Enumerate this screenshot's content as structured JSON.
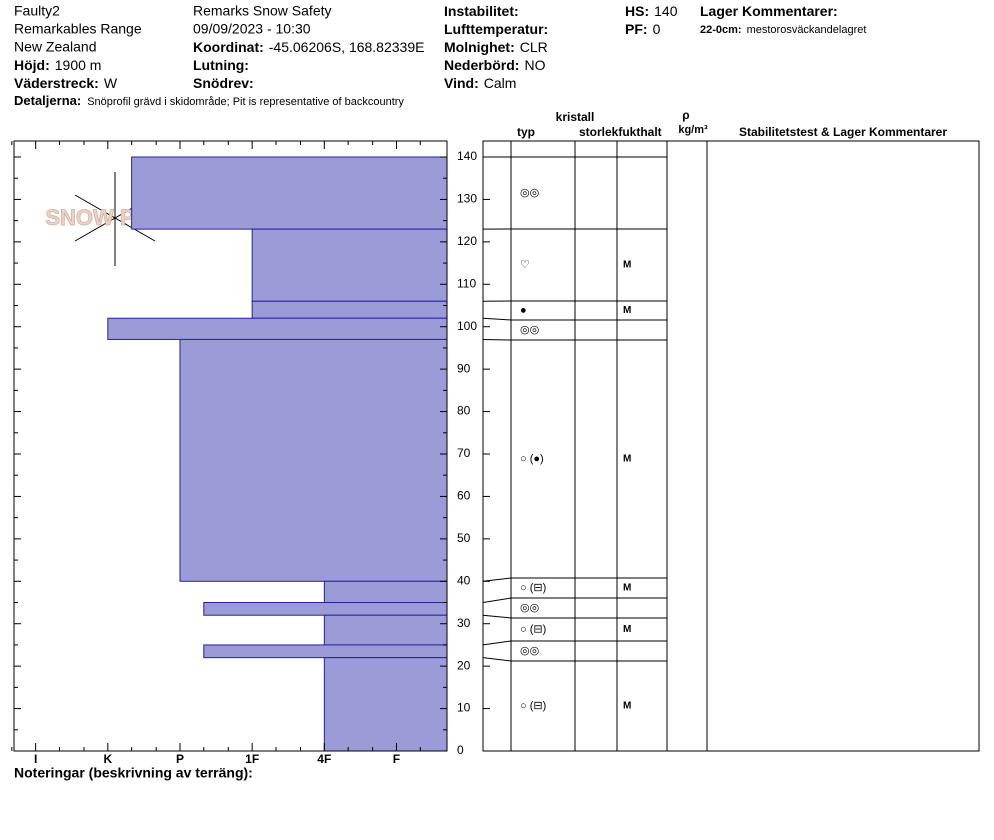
{
  "header": {
    "columns": [
      [
        "Faulty2",
        "Remarkables Range",
        "New Zealand",
        {
          "label": "Höjd:",
          "value": "1900 m"
        },
        {
          "label": "Väderstreck:",
          "value": "W"
        }
      ],
      [
        "Remarks Snow Safety",
        "09/09/2023 - 10:30",
        {
          "label": "Koordinat:",
          "value": "-45.06206S, 168.82339E"
        },
        {
          "label": "Lutning:"
        },
        {
          "label": "Snödrev:"
        }
      ],
      [
        {
          "label": "Instabilitet:"
        },
        {
          "label": "Lufttemperatur:"
        },
        {
          "label": "Molnighet:",
          "value": "CLR"
        },
        {
          "label": "Nederbörd:",
          "value": "NO"
        },
        {
          "label": "Vind:",
          "value": "Calm"
        }
      ],
      [
        {
          "label": "HS:",
          "value": 140
        },
        {
          "label": "PF:",
          "value": 0
        }
      ],
      [
        {
          "label": "Lager Kommentarer:"
        },
        {
          "label": "22-0cm:",
          "value": "mestorosväckandelagret"
        }
      ]
    ],
    "details": {
      "label": "Detaljerna:",
      "value": "Snöprofil grävd i skidområde;  Pit is representative of backcountry"
    }
  },
  "watermark": "SNOW PILOT",
  "chart_data": {
    "type": "snow-profile",
    "ylim": [
      0,
      140
    ],
    "yticks": [
      0,
      10,
      20,
      30,
      40,
      50,
      60,
      70,
      80,
      90,
      100,
      110,
      120,
      130,
      140
    ],
    "xlim": [
      6.3,
      0.3
    ],
    "xticks": [
      {
        "value": 6,
        "label": "I"
      },
      {
        "value": 5,
        "label": "K"
      },
      {
        "value": 4,
        "label": "P"
      },
      {
        "value": 3,
        "label": "1F"
      },
      {
        "value": 2,
        "label": "4F"
      },
      {
        "value": 1,
        "label": "F"
      }
    ],
    "color": "#9b9bd7",
    "edge_color": "#2323a0",
    "table_headers": {
      "crystal": "kristall",
      "type": "typ",
      "size": "storlek",
      "moisture": "fukthalt",
      "density": "ρ",
      "density_unit": "kg/m³",
      "comments": "Stabilitetstest & Lager Kommentarer"
    },
    "layers": [
      {
        "top": 140,
        "bottom": 123,
        "hardness": 4.67,
        "grain_type": "◎◎"
      },
      {
        "top": 123,
        "bottom": 106,
        "hardness": 3,
        "grain_type": "♡",
        "moisture": "M"
      },
      {
        "top": 106,
        "bottom": 102,
        "hardness": 3,
        "grain_type": "●",
        "moisture": "M"
      },
      {
        "top": 102,
        "bottom": 97,
        "hardness": 5,
        "grain_type": "◎◎"
      },
      {
        "top": 97,
        "bottom": 40,
        "hardness": 4,
        "grain_type": "○ (●)",
        "moisture": "M"
      },
      {
        "top": 40,
        "bottom": 35,
        "hardness": 2,
        "grain_type": "○ (⊟)",
        "moisture": "M"
      },
      {
        "top": 35,
        "bottom": 32,
        "hardness": 3.67,
        "grain_type": "◎◎"
      },
      {
        "top": 32,
        "bottom": 25,
        "hardness": 2,
        "grain_type": "○ (⊟)",
        "moisture": "M"
      },
      {
        "top": 25,
        "bottom": 22,
        "hardness": 3.67,
        "grain_type": "◎◎"
      },
      {
        "top": 22,
        "bottom": 0,
        "hardness": 2,
        "grain_type": "○ (⊟)",
        "moisture": "M"
      }
    ]
  },
  "footer": "Noteringar (beskrivning av terräng):"
}
